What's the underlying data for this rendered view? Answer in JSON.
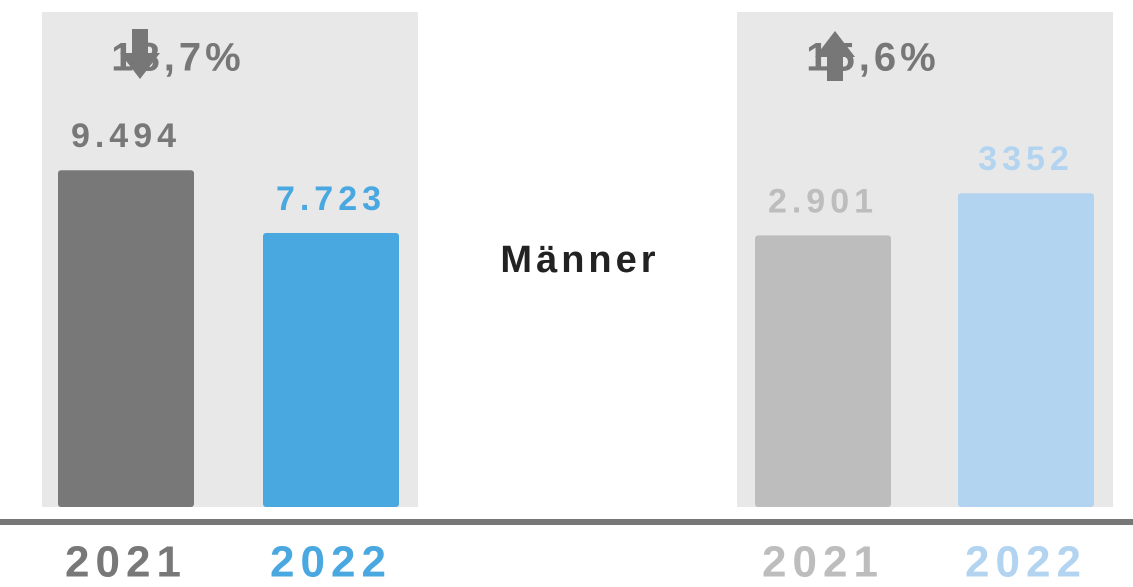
{
  "label": "Männer",
  "chart_data": [
    {
      "type": "bar",
      "categories": [
        "2021",
        "2022"
      ],
      "values": [
        9494,
        7723
      ],
      "value_labels": [
        "9.494",
        "7.723"
      ],
      "colors": [
        "#787878",
        "#4aa8e0"
      ],
      "annotation": "18,7%",
      "trend": "down",
      "ylim": [
        0,
        9500
      ]
    },
    {
      "type": "bar",
      "categories": [
        "2021",
        "2022"
      ],
      "values": [
        2901,
        3352
      ],
      "value_labels": [
        "2.901",
        "3352"
      ],
      "colors": [
        "#bdbdbd",
        "#b3d4f0"
      ],
      "annotation": "15,6%",
      "trend": "up",
      "ylim": [
        0,
        3600
      ]
    }
  ]
}
